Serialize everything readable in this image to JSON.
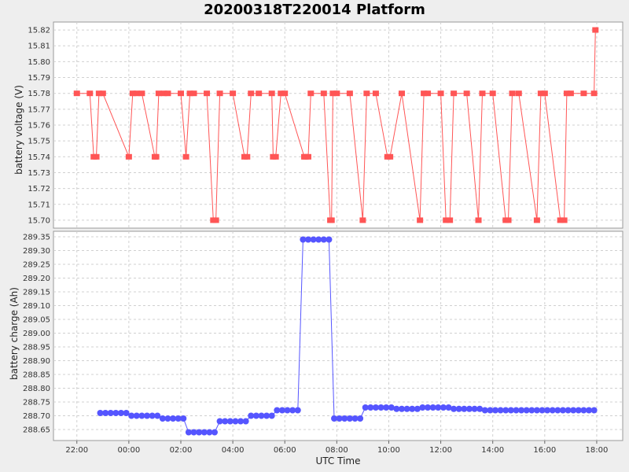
{
  "title": "20200318T220014 Platform",
  "colors": {
    "voltage": "#ff5555",
    "charge": "#5555ff",
    "plot_bg": "#ffffff",
    "grid": "#d0d0d0"
  },
  "chart_data": [
    {
      "type": "line",
      "ylabel": "battery voltage (V)",
      "xlabel": "",
      "ylim": [
        15.695,
        15.825
      ],
      "yticks": [
        "15.70",
        "15.71",
        "15.72",
        "15.73",
        "15.74",
        "15.75",
        "15.76",
        "15.77",
        "15.78",
        "15.79",
        "15.80",
        "15.81",
        "15.82"
      ],
      "xlim": [
        -2.9,
        19.0
      ],
      "grid": true,
      "series": [
        {
          "x": [
            -2.0,
            -1.5,
            -1.35,
            -1.25,
            -1.15,
            -1.0,
            0.0,
            0.15,
            0.3,
            0.5,
            1.0,
            1.05,
            1.15,
            1.35,
            1.5,
            2.0,
            2.2,
            2.35,
            2.5,
            3.0,
            3.25,
            3.35,
            3.5,
            4.0,
            4.45,
            4.55,
            4.7,
            5.0,
            5.5,
            5.55,
            5.65,
            5.85,
            6.0,
            6.75,
            6.8,
            6.9,
            7.0,
            7.5,
            7.75,
            7.8,
            7.85,
            8.0,
            8.5,
            9.0,
            9.15,
            9.5,
            9.95,
            10.05,
            10.5,
            11.2,
            11.35,
            11.5,
            12.0,
            12.2,
            12.35,
            12.5,
            13.0,
            13.45,
            13.6,
            14.0,
            14.5,
            14.6,
            14.75,
            15.0,
            15.7,
            15.85,
            16.0,
            16.6,
            16.75,
            16.85,
            17.0,
            17.5,
            17.9,
            17.95
          ],
          "y": [
            15.78,
            15.78,
            15.74,
            15.74,
            15.78,
            15.78,
            15.74,
            15.78,
            15.78,
            15.78,
            15.74,
            15.74,
            15.78,
            15.78,
            15.78,
            15.78,
            15.74,
            15.78,
            15.78,
            15.78,
            15.7,
            15.7,
            15.78,
            15.78,
            15.74,
            15.74,
            15.78,
            15.78,
            15.78,
            15.74,
            15.74,
            15.78,
            15.78,
            15.74,
            15.74,
            15.74,
            15.78,
            15.78,
            15.7,
            15.7,
            15.78,
            15.78,
            15.78,
            15.7,
            15.78,
            15.78,
            15.74,
            15.74,
            15.78,
            15.7,
            15.78,
            15.78,
            15.78,
            15.7,
            15.7,
            15.78,
            15.78,
            15.7,
            15.78,
            15.78,
            15.7,
            15.7,
            15.78,
            15.78,
            15.7,
            15.78,
            15.78,
            15.7,
            15.7,
            15.78,
            15.78,
            15.78,
            15.78,
            15.82
          ]
        }
      ]
    },
    {
      "type": "line",
      "ylabel": "battery charge (Ah)",
      "xlabel": "UTC Time",
      "ylim": [
        288.61,
        289.37
      ],
      "yticks": [
        "288.65",
        "288.70",
        "288.75",
        "288.80",
        "288.85",
        "288.90",
        "288.95",
        "289.00",
        "289.05",
        "289.10",
        "289.15",
        "289.20",
        "289.25",
        "289.30",
        "289.35"
      ],
      "xlim": [
        -2.9,
        19.0
      ],
      "xticks": [
        "22:00",
        "00:00",
        "02:00",
        "04:00",
        "06:00",
        "08:00",
        "10:00",
        "12:00",
        "14:00",
        "16:00",
        "18:00"
      ],
      "xtick_values": [
        -2,
        0,
        2,
        4,
        6,
        8,
        10,
        12,
        14,
        16,
        18
      ],
      "grid": true,
      "series": [
        {
          "x": [
            -1.1,
            -0.9,
            -0.7,
            -0.5,
            -0.3,
            -0.1,
            0.1,
            0.3,
            0.5,
            0.7,
            0.9,
            1.1,
            1.3,
            1.5,
            1.7,
            1.9,
            2.1,
            2.3,
            2.5,
            2.7,
            2.9,
            3.1,
            3.3,
            3.5,
            3.7,
            3.9,
            4.1,
            4.3,
            4.5,
            4.7,
            4.9,
            5.1,
            5.3,
            5.5,
            5.7,
            5.9,
            6.1,
            6.3,
            6.5,
            6.7,
            6.9,
            7.1,
            7.3,
            7.5,
            7.7,
            7.9,
            8.1,
            8.3,
            8.5,
            8.7,
            8.9,
            9.1,
            9.3,
            9.5,
            9.7,
            9.9,
            10.1,
            10.3,
            10.5,
            10.7,
            10.9,
            11.1,
            11.3,
            11.5,
            11.7,
            11.9,
            12.1,
            12.3,
            12.5,
            12.7,
            12.9,
            13.1,
            13.3,
            13.5,
            13.7,
            13.9,
            14.1,
            14.3,
            14.5,
            14.7,
            14.9,
            15.1,
            15.3,
            15.5,
            15.7,
            15.9,
            16.1,
            16.3,
            16.5,
            16.7,
            16.9,
            17.1,
            17.3,
            17.5,
            17.7,
            17.9
          ],
          "y": [
            288.71,
            288.71,
            288.71,
            288.71,
            288.71,
            288.71,
            288.7,
            288.7,
            288.7,
            288.7,
            288.7,
            288.7,
            288.69,
            288.69,
            288.69,
            288.69,
            288.69,
            288.64,
            288.64,
            288.64,
            288.64,
            288.64,
            288.64,
            288.68,
            288.68,
            288.68,
            288.68,
            288.68,
            288.68,
            288.7,
            288.7,
            288.7,
            288.7,
            288.7,
            288.72,
            288.72,
            288.72,
            288.72,
            288.72,
            289.34,
            289.34,
            289.34,
            289.34,
            289.34,
            289.34,
            288.69,
            288.69,
            288.69,
            288.69,
            288.69,
            288.69,
            288.73,
            288.73,
            288.73,
            288.73,
            288.73,
            288.73,
            288.725,
            288.725,
            288.725,
            288.725,
            288.725,
            288.73,
            288.73,
            288.73,
            288.73,
            288.73,
            288.73,
            288.725,
            288.725,
            288.725,
            288.725,
            288.725,
            288.725,
            288.72,
            288.72,
            288.72,
            288.72,
            288.72,
            288.72,
            288.72,
            288.72,
            288.72,
            288.72,
            288.72,
            288.72,
            288.72,
            288.72,
            288.72,
            288.72,
            288.72,
            288.72,
            288.72,
            288.72,
            288.72,
            288.72
          ]
        }
      ]
    }
  ]
}
